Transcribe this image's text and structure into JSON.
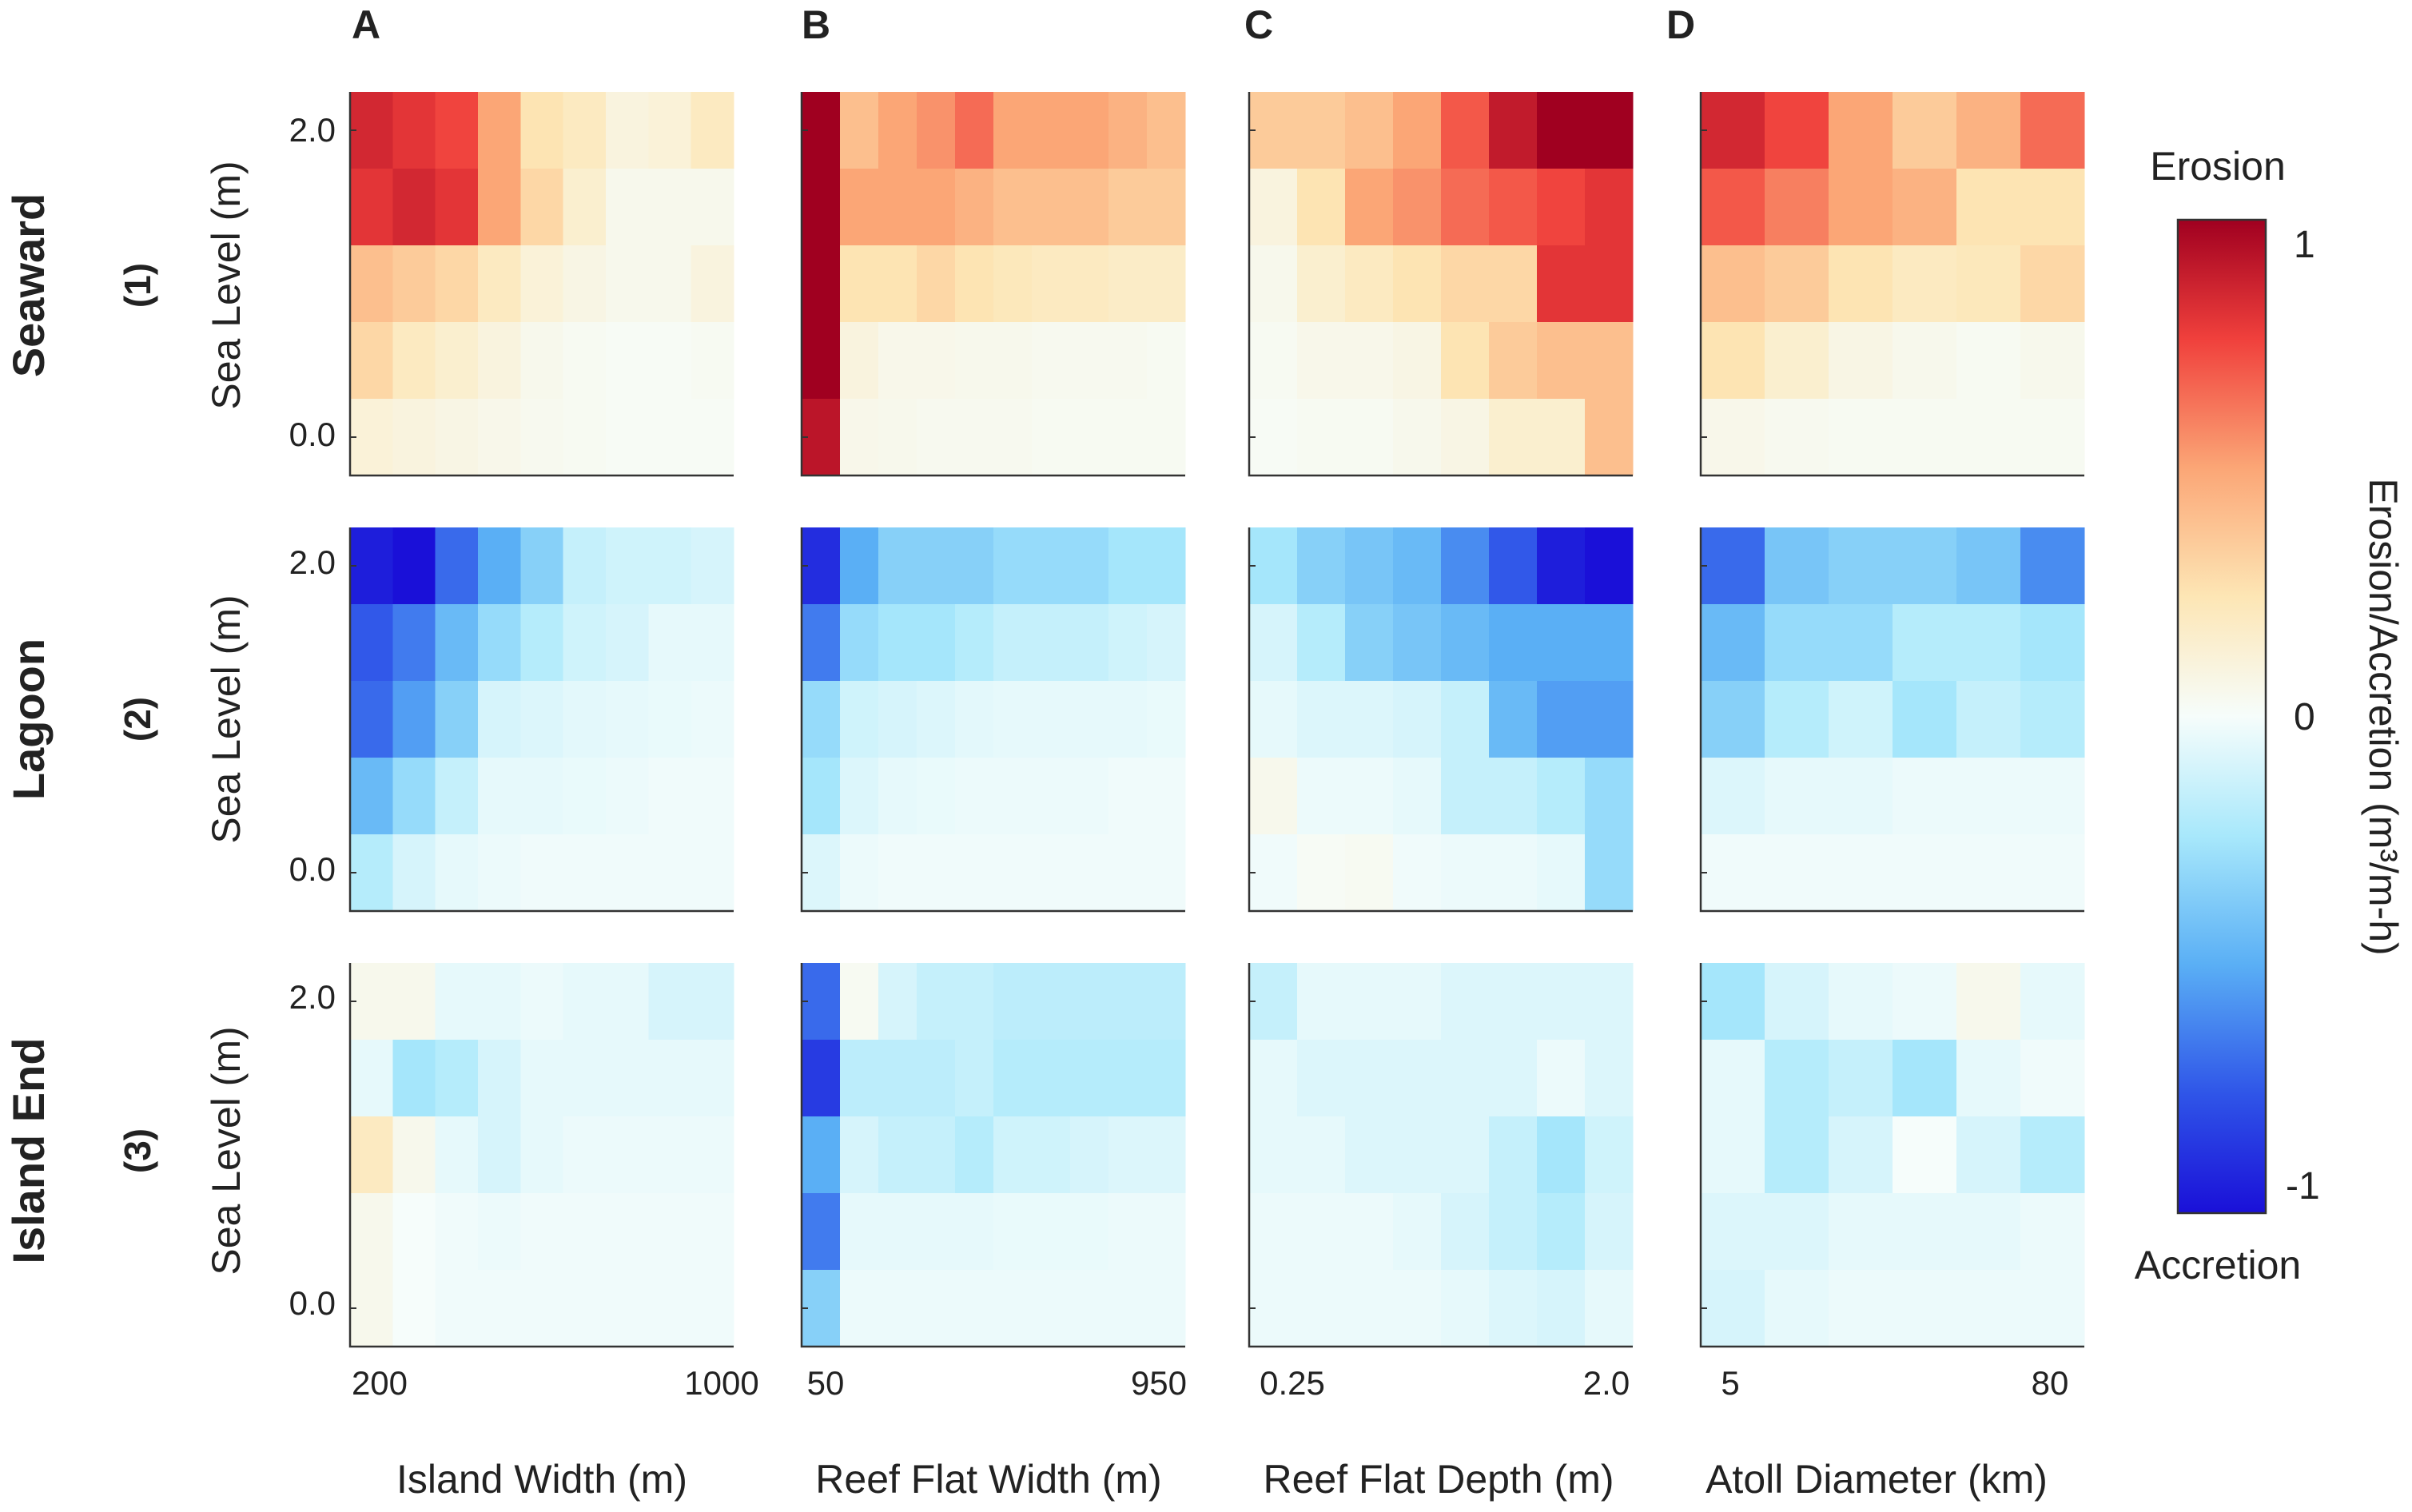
{
  "figure": {
    "panel_letters": [
      "A",
      "B",
      "C",
      "D"
    ],
    "row_labels": [
      "Seaward",
      "Lagoon",
      "Island End"
    ],
    "row_numbers": [
      "(1)",
      "(2)",
      "(3)"
    ],
    "y_axis_label": "Sea Level (m)",
    "y_ticks": [
      "2.0",
      "0.0"
    ]
  },
  "colorbar": {
    "title": "Erosion/Accretion (m³/m-h)",
    "top_label": "Erosion",
    "bottom_label": "Accretion",
    "ticks": [
      "1",
      "0",
      "-1"
    ],
    "range": [
      -1,
      1
    ]
  },
  "chart_data": {
    "type": "heatmap",
    "value_range": [
      -1,
      1
    ],
    "sea_level_rows_top_to_bottom": [
      "2.0",
      "1.5",
      "1.0",
      "0.5",
      "0.0"
    ],
    "columns": [
      {
        "panel": "A",
        "xlabel": "Island Width (m)",
        "x_ticks": [
          "200",
          "1000"
        ],
        "x_range": [
          200,
          1000
        ],
        "cols": 9,
        "rows": {
          "seaward": [
            [
              0.85,
              0.8,
              0.75,
              0.5,
              0.25,
              0.2,
              0.1,
              0.12,
              0.2
            ],
            [
              0.8,
              0.85,
              0.8,
              0.5,
              0.3,
              0.15,
              0.05,
              0.05,
              0.05
            ],
            [
              0.4,
              0.35,
              0.3,
              0.2,
              0.12,
              0.08,
              0.05,
              0.05,
              0.1
            ],
            [
              0.3,
              0.2,
              0.15,
              0.1,
              0.05,
              0.03,
              0.02,
              0.02,
              0.03
            ],
            [
              0.12,
              0.1,
              0.08,
              0.06,
              0.04,
              0.03,
              0.02,
              0.02,
              0.02
            ]
          ],
          "lagoon": [
            [
              -0.95,
              -1.0,
              -0.7,
              -0.5,
              -0.35,
              -0.15,
              -0.12,
              -0.12,
              -0.1
            ],
            [
              -0.75,
              -0.65,
              -0.45,
              -0.3,
              -0.2,
              -0.12,
              -0.1,
              -0.05,
              -0.05
            ],
            [
              -0.7,
              -0.55,
              -0.35,
              -0.1,
              -0.08,
              -0.06,
              -0.05,
              -0.04,
              -0.03
            ],
            [
              -0.45,
              -0.3,
              -0.15,
              -0.05,
              -0.05,
              -0.04,
              -0.03,
              -0.02,
              -0.02
            ],
            [
              -0.2,
              -0.1,
              -0.05,
              -0.03,
              -0.02,
              -0.02,
              -0.02,
              -0.02,
              -0.02
            ]
          ],
          "island_end": [
            [
              0.05,
              0.05,
              -0.05,
              -0.05,
              -0.03,
              -0.05,
              -0.05,
              -0.1,
              -0.1
            ],
            [
              -0.05,
              -0.25,
              -0.2,
              -0.1,
              -0.05,
              -0.05,
              -0.05,
              -0.05,
              -0.05
            ],
            [
              0.2,
              0.05,
              -0.05,
              -0.1,
              -0.05,
              -0.03,
              -0.03,
              -0.03,
              -0.03
            ],
            [
              0.05,
              0.0,
              -0.02,
              -0.03,
              -0.02,
              -0.02,
              -0.02,
              -0.02,
              -0.02
            ],
            [
              0.05,
              0.0,
              -0.02,
              -0.02,
              -0.02,
              -0.02,
              -0.02,
              -0.02,
              -0.02
            ]
          ]
        }
      },
      {
        "panel": "B",
        "xlabel": "Reef Flat Width (m)",
        "x_ticks": [
          "50",
          "950"
        ],
        "x_range": [
          50,
          950
        ],
        "cols": 10,
        "rows": {
          "seaward": [
            [
              1.0,
              0.4,
              0.5,
              0.55,
              0.65,
              0.5,
              0.5,
              0.5,
              0.45,
              0.4
            ],
            [
              1.0,
              0.5,
              0.5,
              0.5,
              0.45,
              0.4,
              0.4,
              0.4,
              0.35,
              0.35
            ],
            [
              1.0,
              0.25,
              0.25,
              0.3,
              0.25,
              0.22,
              0.2,
              0.2,
              0.18,
              0.18
            ],
            [
              1.0,
              0.1,
              0.06,
              0.06,
              0.05,
              0.05,
              0.04,
              0.04,
              0.04,
              0.03
            ],
            [
              0.92,
              0.06,
              0.05,
              0.04,
              0.04,
              0.04,
              0.03,
              0.03,
              0.03,
              0.03
            ]
          ],
          "lagoon": [
            [
              -0.9,
              -0.5,
              -0.35,
              -0.35,
              -0.35,
              -0.3,
              -0.3,
              -0.3,
              -0.25,
              -0.25
            ],
            [
              -0.65,
              -0.3,
              -0.25,
              -0.25,
              -0.2,
              -0.15,
              -0.15,
              -0.15,
              -0.12,
              -0.1
            ],
            [
              -0.3,
              -0.12,
              -0.1,
              -0.08,
              -0.06,
              -0.05,
              -0.05,
              -0.05,
              -0.05,
              -0.04
            ],
            [
              -0.25,
              -0.08,
              -0.05,
              -0.04,
              -0.03,
              -0.03,
              -0.03,
              -0.03,
              -0.02,
              -0.02
            ],
            [
              -0.08,
              -0.03,
              -0.02,
              -0.02,
              -0.02,
              -0.02,
              -0.02,
              -0.02,
              -0.02,
              -0.02
            ]
          ],
          "island_end": [
            [
              -0.7,
              0.03,
              -0.1,
              -0.15,
              -0.15,
              -0.18,
              -0.18,
              -0.18,
              -0.18,
              -0.18
            ],
            [
              -0.85,
              -0.18,
              -0.18,
              -0.18,
              -0.15,
              -0.2,
              -0.2,
              -0.2,
              -0.2,
              -0.2
            ],
            [
              -0.5,
              -0.1,
              -0.15,
              -0.15,
              -0.2,
              -0.12,
              -0.12,
              -0.1,
              -0.08,
              -0.08
            ],
            [
              -0.65,
              -0.05,
              -0.05,
              -0.05,
              -0.05,
              -0.04,
              -0.04,
              -0.04,
              -0.03,
              -0.03
            ],
            [
              -0.35,
              -0.03,
              -0.03,
              -0.03,
              -0.03,
              -0.03,
              -0.03,
              -0.03,
              -0.03,
              -0.03
            ]
          ]
        }
      },
      {
        "panel": "C",
        "xlabel": "Reef Flat Depth (m)",
        "x_ticks": [
          "0.25",
          "2.0"
        ],
        "x_range": [
          0.25,
          2.0
        ],
        "cols": 8,
        "rows": {
          "seaward": [
            [
              0.35,
              0.35,
              0.4,
              0.5,
              0.7,
              0.9,
              1.0,
              1.0
            ],
            [
              0.1,
              0.25,
              0.5,
              0.55,
              0.65,
              0.7,
              0.75,
              0.8
            ],
            [
              0.05,
              0.15,
              0.2,
              0.25,
              0.3,
              0.3,
              0.8,
              0.8
            ],
            [
              0.03,
              0.06,
              0.06,
              0.08,
              0.25,
              0.35,
              0.4,
              0.4
            ],
            [
              0.02,
              0.03,
              0.03,
              0.05,
              0.08,
              0.15,
              0.15,
              0.4
            ]
          ],
          "lagoon": [
            [
              -0.25,
              -0.35,
              -0.4,
              -0.45,
              -0.6,
              -0.75,
              -0.95,
              -1.0
            ],
            [
              -0.1,
              -0.2,
              -0.35,
              -0.4,
              -0.45,
              -0.5,
              -0.5,
              -0.5
            ],
            [
              -0.05,
              -0.08,
              -0.08,
              -0.1,
              -0.15,
              -0.45,
              -0.55,
              -0.55
            ],
            [
              0.05,
              -0.03,
              -0.03,
              -0.05,
              -0.15,
              -0.15,
              -0.2,
              -0.3
            ],
            [
              -0.02,
              0.02,
              0.03,
              -0.02,
              -0.03,
              -0.03,
              -0.05,
              -0.3
            ]
          ],
          "island_end": [
            [
              -0.15,
              -0.05,
              -0.05,
              -0.05,
              -0.08,
              -0.08,
              -0.08,
              -0.08
            ],
            [
              -0.05,
              -0.08,
              -0.08,
              -0.08,
              -0.08,
              -0.08,
              -0.03,
              -0.08
            ],
            [
              -0.05,
              -0.05,
              -0.08,
              -0.08,
              -0.08,
              -0.15,
              -0.25,
              -0.12
            ],
            [
              -0.03,
              -0.03,
              -0.03,
              -0.05,
              -0.1,
              -0.15,
              -0.2,
              -0.1
            ],
            [
              -0.03,
              -0.03,
              -0.03,
              -0.03,
              -0.05,
              -0.08,
              -0.1,
              -0.05
            ]
          ]
        }
      },
      {
        "panel": "D",
        "xlabel": "Atoll Diameter (km)",
        "x_ticks": [
          "5",
          "80"
        ],
        "x_range": [
          5,
          80
        ],
        "cols": 6,
        "rows": {
          "seaward": [
            [
              0.85,
              0.75,
              0.5,
              0.35,
              0.45,
              0.65
            ],
            [
              0.7,
              0.6,
              0.5,
              0.45,
              0.25,
              0.25
            ],
            [
              0.4,
              0.35,
              0.25,
              0.2,
              0.22,
              0.3
            ],
            [
              0.25,
              0.15,
              0.08,
              0.05,
              0.03,
              0.05
            ],
            [
              0.06,
              0.04,
              0.03,
              0.03,
              0.03,
              0.03
            ]
          ],
          "lagoon": [
            [
              -0.7,
              -0.4,
              -0.35,
              -0.35,
              -0.4,
              -0.6
            ],
            [
              -0.45,
              -0.3,
              -0.3,
              -0.2,
              -0.2,
              -0.25
            ],
            [
              -0.35,
              -0.2,
              -0.12,
              -0.25,
              -0.15,
              -0.2
            ],
            [
              -0.08,
              -0.05,
              -0.05,
              -0.03,
              -0.03,
              -0.03
            ],
            [
              -0.02,
              -0.02,
              -0.02,
              -0.02,
              -0.02,
              -0.02
            ]
          ],
          "island_end": [
            [
              -0.25,
              -0.1,
              -0.05,
              -0.03,
              0.05,
              -0.05
            ],
            [
              -0.05,
              -0.2,
              -0.15,
              -0.25,
              -0.05,
              -0.02
            ],
            [
              -0.05,
              -0.2,
              -0.1,
              0.0,
              -0.1,
              -0.2
            ],
            [
              -0.08,
              -0.08,
              -0.05,
              -0.05,
              -0.05,
              -0.03
            ],
            [
              -0.1,
              -0.05,
              -0.03,
              -0.03,
              -0.03,
              -0.03
            ]
          ]
        }
      }
    ]
  }
}
